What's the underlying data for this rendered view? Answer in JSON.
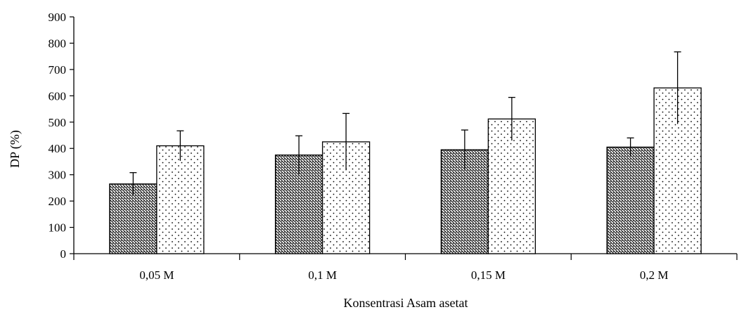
{
  "chart_data": {
    "type": "bar",
    "title": "",
    "xlabel": "Konsentrasi Asam asetat",
    "ylabel": "DP (%)",
    "ylim": [
      0,
      900
    ],
    "yticks": [
      "0",
      "100",
      "200",
      "300",
      "400",
      "500",
      "600",
      "700",
      "800",
      "900"
    ],
    "categories": [
      "0,05 M",
      "0,1 M",
      "0,15 M",
      "0,2 M"
    ],
    "series": [
      {
        "pattern": "diagonal-hatch",
        "values": [
          265,
          375,
          395,
          405
        ],
        "errors": [
          43,
          73,
          75,
          35
        ]
      },
      {
        "pattern": "dots",
        "values": [
          410,
          425,
          512,
          630
        ],
        "errors": [
          57,
          108,
          82,
          137
        ]
      }
    ],
    "grid": false,
    "legend": "none",
    "colors": {
      "axis": "#000000",
      "bar_stroke": "#000000",
      "bar_fill": "#ffffff"
    }
  }
}
